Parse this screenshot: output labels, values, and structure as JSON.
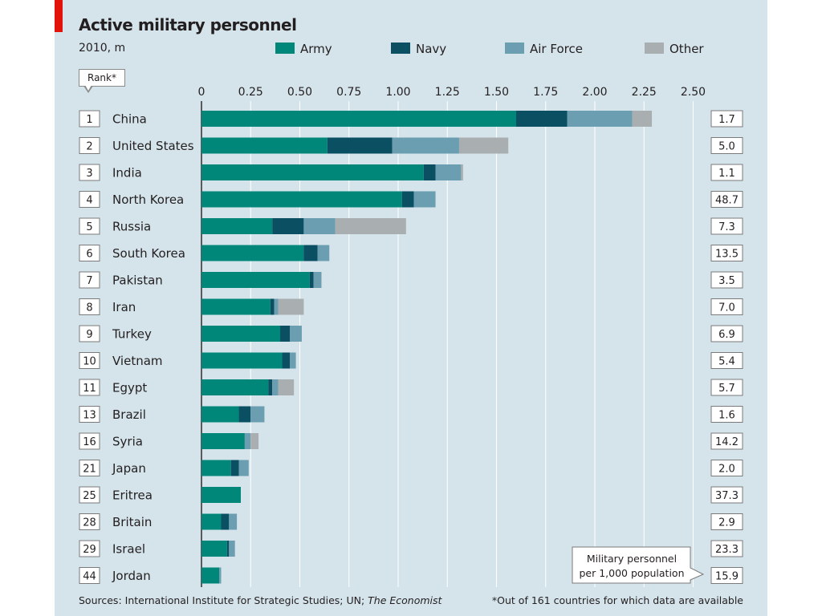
{
  "header": {
    "title": "Active military personnel",
    "subtitle": "2010, m",
    "rank_label": "Rank*"
  },
  "footer": {
    "sources_prefix": "Sources: International Institute for Strategic Studies; UN; ",
    "sources_italic": "The Economist",
    "footnote": "*Out of 161 countries for which data are available"
  },
  "ratio_box": {
    "line1": "Military personnel",
    "line2": "per 1,000 population"
  },
  "colors": {
    "Army": "#00877a",
    "Navy": "#0b4f63",
    "Air Force": "#6b9eb1",
    "Other": "#a9aeb0",
    "background": "#d5e4eb",
    "accent": "#e3120b"
  },
  "chart_data": {
    "type": "bar",
    "orientation": "horizontal",
    "stacked": true,
    "title": "Active military personnel",
    "subtitle": "2010, m",
    "xlim": [
      0,
      2.5
    ],
    "ticks": [
      0,
      0.25,
      0.5,
      0.75,
      1.0,
      1.25,
      1.5,
      1.75,
      2.0,
      2.25,
      2.5
    ],
    "tick_labels": [
      "0",
      "0.25",
      "0.50",
      "0.75",
      "1.00",
      "1.25",
      "1.50",
      "1.75",
      "2.00",
      "2.25",
      "2.50"
    ],
    "grid": true,
    "legend_position": "top",
    "categories": [
      "China",
      "United States",
      "India",
      "North Korea",
      "Russia",
      "South Korea",
      "Pakistan",
      "Iran",
      "Turkey",
      "Vietnam",
      "Egypt",
      "Brazil",
      "Syria",
      "Japan",
      "Eritrea",
      "Britain",
      "Israel",
      "Jordan"
    ],
    "ranks": [
      "1",
      "2",
      "3",
      "4",
      "5",
      "6",
      "7",
      "8",
      "9",
      "10",
      "11",
      "13",
      "16",
      "21",
      "25",
      "28",
      "29",
      "44"
    ],
    "series": [
      {
        "name": "Army",
        "values": [
          1.6,
          0.64,
          1.13,
          1.02,
          0.36,
          0.52,
          0.55,
          0.35,
          0.4,
          0.41,
          0.34,
          0.19,
          0.22,
          0.15,
          0.2,
          0.1,
          0.13,
          0.09
        ]
      },
      {
        "name": "Navy",
        "values": [
          0.26,
          0.33,
          0.06,
          0.06,
          0.16,
          0.07,
          0.02,
          0.02,
          0.05,
          0.04,
          0.02,
          0.06,
          0.0,
          0.04,
          0.0,
          0.04,
          0.01,
          0.0
        ]
      },
      {
        "name": "Air Force",
        "values": [
          0.33,
          0.34,
          0.13,
          0.11,
          0.16,
          0.06,
          0.04,
          0.02,
          0.06,
          0.03,
          0.03,
          0.07,
          0.03,
          0.05,
          0.0,
          0.04,
          0.03,
          0.01
        ]
      },
      {
        "name": "Other",
        "values": [
          0.1,
          0.25,
          0.01,
          0.0,
          0.36,
          0.0,
          0.0,
          0.13,
          0.0,
          0.0,
          0.08,
          0.0,
          0.04,
          0.0,
          0.0,
          0.0,
          0.0,
          0.0
        ]
      }
    ],
    "per_1000_population": [
      "1.7",
      "5.0",
      "1.1",
      "48.7",
      "7.3",
      "13.5",
      "3.5",
      "7.0",
      "6.9",
      "5.4",
      "5.7",
      "1.6",
      "14.2",
      "2.0",
      "37.3",
      "2.9",
      "23.3",
      "15.9"
    ]
  }
}
